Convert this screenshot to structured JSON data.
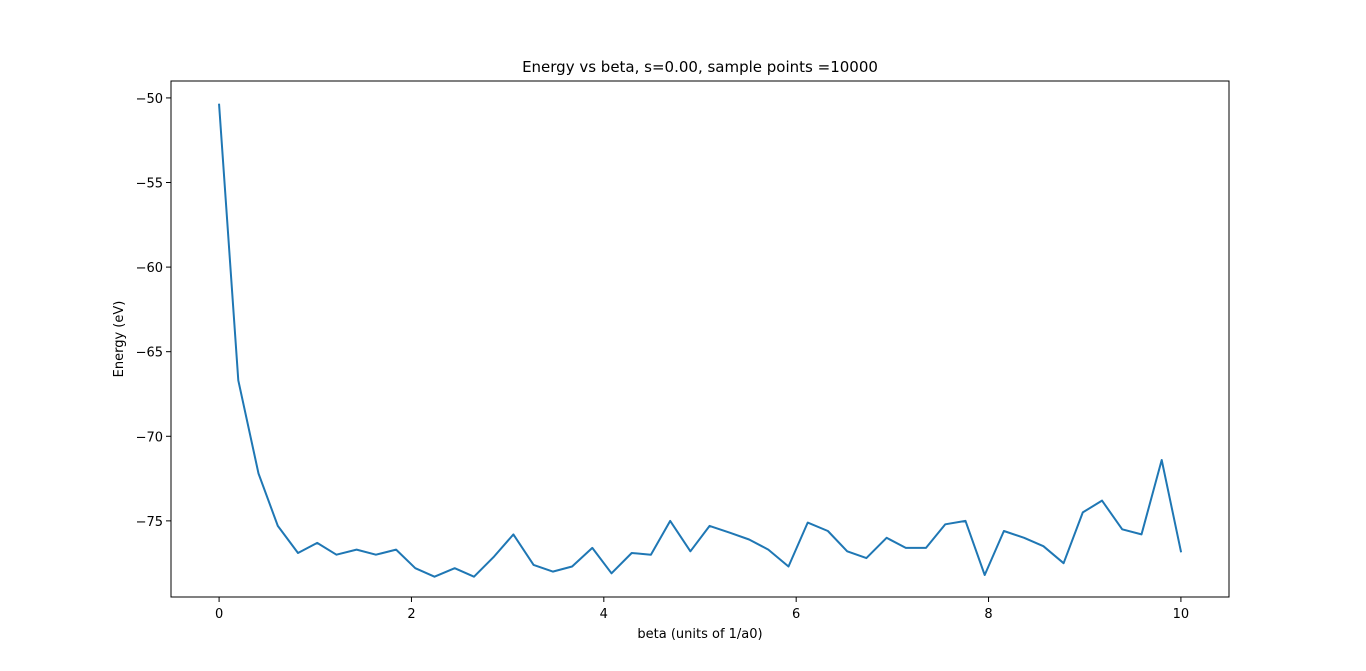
{
  "chart_data": {
    "type": "line",
    "title": "Energy vs beta, s=0.00, sample points =10000",
    "xlabel": "beta (units of 1/a0)",
    "ylabel": "Energy (eV)",
    "xlim": [
      -0.5,
      10.5
    ],
    "ylim": [
      -79.5,
      -49.0
    ],
    "xticks": [
      0,
      2,
      4,
      6,
      8,
      10
    ],
    "xtick_labels": [
      "0",
      "2",
      "4",
      "6",
      "8",
      "10"
    ],
    "yticks": [
      -50,
      -55,
      -60,
      -65,
      -70,
      -75
    ],
    "ytick_labels": [
      "−50",
      "−55",
      "−60",
      "−65",
      "−70",
      "−75"
    ],
    "grid": false,
    "legend": false,
    "series": [
      {
        "color": "#1f77b4",
        "x": [
          0.0,
          0.2,
          0.41,
          0.61,
          0.82,
          1.02,
          1.22,
          1.43,
          1.63,
          1.84,
          2.04,
          2.24,
          2.45,
          2.65,
          2.86,
          3.06,
          3.27,
          3.47,
          3.67,
          3.88,
          4.08,
          4.29,
          4.49,
          4.69,
          4.9,
          5.1,
          5.31,
          5.51,
          5.71,
          5.92,
          6.12,
          6.33,
          6.53,
          6.73,
          6.94,
          7.14,
          7.35,
          7.55,
          7.76,
          7.96,
          8.16,
          8.37,
          8.57,
          8.78,
          8.98,
          9.18,
          9.39,
          9.59,
          9.8,
          10.0
        ],
        "y": [
          -50.4,
          -66.7,
          -72.2,
          -75.3,
          -76.9,
          -76.3,
          -77.0,
          -76.7,
          -77.0,
          -76.7,
          -77.8,
          -78.3,
          -77.8,
          -78.3,
          -77.1,
          -75.8,
          -77.6,
          -78.0,
          -77.7,
          -76.6,
          -78.1,
          -76.9,
          -77.0,
          -75.0,
          -76.8,
          -75.3,
          -75.7,
          -76.1,
          -76.7,
          -77.7,
          -75.1,
          -75.6,
          -76.8,
          -77.2,
          -76.0,
          -76.6,
          -76.6,
          -75.2,
          -75.0,
          -78.2,
          -75.6,
          -76.0,
          -76.5,
          -77.5,
          -74.5,
          -73.8,
          -75.5,
          -75.8,
          -71.4,
          -76.8
        ]
      }
    ]
  }
}
